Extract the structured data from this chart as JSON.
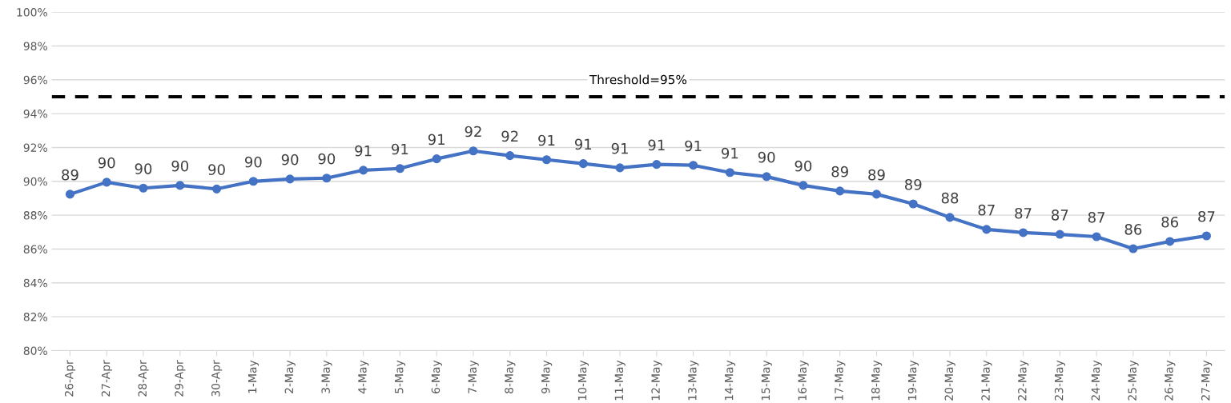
{
  "chart_data": {
    "type": "line",
    "categories": [
      "26-Apr",
      "27-Apr",
      "28-Apr",
      "29-Apr",
      "30-Apr",
      "1-May",
      "2-May",
      "3-May",
      "4-May",
      "5-May",
      "6-May",
      "7-May",
      "8-May",
      "9-May",
      "10-May",
      "11-May",
      "12-May",
      "13-May",
      "14-May",
      "15-May",
      "16-May",
      "17-May",
      "18-May",
      "19-May",
      "20-May",
      "21-May",
      "22-May",
      "23-May",
      "24-May",
      "25-May",
      "26-May",
      "27-May"
    ],
    "series": [
      {
        "color": "#4472c4",
        "values": [
          89.24,
          89.95,
          89.6,
          89.76,
          89.55,
          90.0,
          90.14,
          90.19,
          90.66,
          90.76,
          91.33,
          91.8,
          91.52,
          91.28,
          91.05,
          90.8,
          91.0,
          90.95,
          90.52,
          90.28,
          89.76,
          89.43,
          89.24,
          88.67,
          87.87,
          87.16,
          86.97,
          86.87,
          86.73,
          86.02,
          86.45,
          86.78
        ],
        "value_labels": [
          "89",
          "90",
          "90",
          "90",
          "90",
          "90",
          "90",
          "90",
          "91",
          "91",
          "91",
          "92",
          "92",
          "91",
          "91",
          "91",
          "91",
          "91",
          "91",
          "90",
          "90",
          "89",
          "89",
          "89",
          "88",
          "87",
          "87",
          "87",
          "87",
          "86",
          "86",
          "87"
        ]
      }
    ],
    "ylim": [
      80,
      100
    ],
    "yticks": [
      {
        "value": 80,
        "label": "80%"
      },
      {
        "value": 82,
        "label": "82%"
      },
      {
        "value": 84,
        "label": "84%"
      },
      {
        "value": 86,
        "label": "86%"
      },
      {
        "value": 88,
        "label": "88%"
      },
      {
        "value": 90,
        "label": "90%"
      },
      {
        "value": 92,
        "label": "92%"
      },
      {
        "value": 94,
        "label": "94%"
      },
      {
        "value": 96,
        "label": "96%"
      },
      {
        "value": 98,
        "label": "98%"
      },
      {
        "value": 100,
        "label": "100%"
      }
    ],
    "ref_lines": [
      {
        "axis": "y",
        "value": 95,
        "label": "Threshold=95%",
        "color": "#000000",
        "line_style": "dashed"
      }
    ],
    "grid": "y",
    "marker": "circle",
    "line_style": "solid"
  }
}
